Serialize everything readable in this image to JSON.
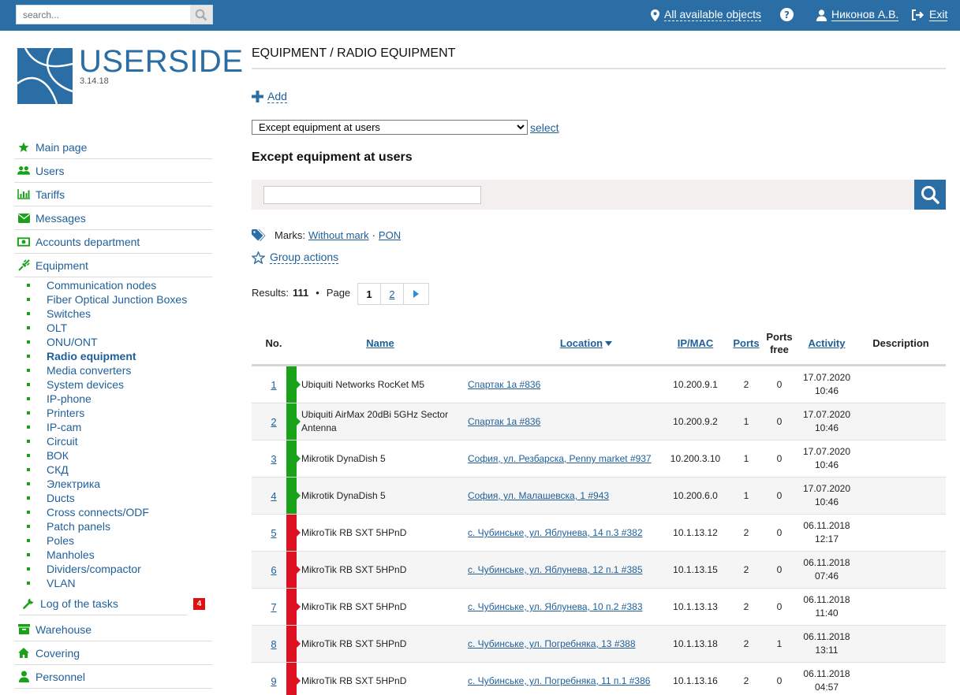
{
  "topbar": {
    "search_placeholder": "search...",
    "objects_label": "All available objects",
    "user_label": "Никонов А.В.",
    "exit_label": "Exit"
  },
  "logo": {
    "title": "USERSIDE",
    "version": "3.14.18"
  },
  "sidebar": {
    "items": [
      {
        "label": "Main page",
        "icon": "star-icon"
      },
      {
        "label": "Users",
        "icon": "users-icon"
      },
      {
        "label": "Tariffs",
        "icon": "bar-chart-icon"
      },
      {
        "label": "Messages",
        "icon": "envelope-icon"
      },
      {
        "label": "Accounts department",
        "icon": "money-icon"
      },
      {
        "label": "Equipment",
        "icon": "plug-icon"
      }
    ],
    "equipment_sub": [
      "Communication nodes",
      "Fiber Optical Junction Boxes",
      "Switches",
      "OLT",
      "ONU/ONT",
      "Radio equipment",
      "Media converters",
      "System devices",
      "IP-phone",
      "Printers",
      "IP-cam",
      "Circuit",
      "ВОК",
      "СКД",
      "Электрика",
      "Ducts",
      "Cross connects/ODF",
      "Patch panels",
      "Poles",
      "Manholes",
      "Dividers/compactor",
      "VLAN"
    ],
    "tasks_label": "Log of the tasks",
    "tasks_badge": "4",
    "bottom_items": [
      {
        "label": "Warehouse",
        "icon": "archive-icon"
      },
      {
        "label": "Covering",
        "icon": "home-icon"
      },
      {
        "label": "Personnel",
        "icon": "personnel-icon"
      }
    ]
  },
  "main": {
    "title": "EQUIPMENT / RADIO EQUIPMENT",
    "add_label": "Add",
    "filter_select_value": "Except equipment at users",
    "select_link": "select",
    "section_title": "Except equipment at users",
    "marks_label": "Marks:",
    "mark_without": "Without mark",
    "mark_sep": "·",
    "mark_pon": "PON",
    "group_actions": "Group actions",
    "results_label": "Results:",
    "results_count": "111",
    "page_label": "Page",
    "pages": [
      "1",
      "2"
    ]
  },
  "table": {
    "headers": {
      "no": "No.",
      "name": "Name",
      "location": "Location",
      "ipmac": "IP/MAC",
      "ports": "Ports",
      "ports_free": "Ports free",
      "activity": "Activity",
      "description": "Description"
    },
    "rows": [
      {
        "no": "1",
        "status": "#1aa11a",
        "name": "Ubiquiti Networks RocKet M5",
        "location": "Спартак 1а #836",
        "ip": "10.200.9.1",
        "ports": "2",
        "free": "0",
        "date": "17.07.2020",
        "time": "10:46"
      },
      {
        "no": "2",
        "status": "#1aa11a",
        "name": "Ubiquiti AirMax 20dBi 5GHz Sector Antenna",
        "location": "Спартак 1а #836",
        "ip": "10.200.9.2",
        "ports": "1",
        "free": "0",
        "date": "17.07.2020",
        "time": "10:46"
      },
      {
        "no": "3",
        "status": "#1aa11a",
        "name": "Mikrotik DynaDish 5",
        "location": "София, ул. Резбарска, Penny market #937",
        "ip": "10.200.3.10",
        "ports": "1",
        "free": "0",
        "date": "17.07.2020",
        "time": "10:46"
      },
      {
        "no": "4",
        "status": "#1aa11a",
        "name": "Mikrotik DynaDish 5",
        "location": "София, ул. Малашевска, 1 #943",
        "ip": "10.200.6.0",
        "ports": "1",
        "free": "0",
        "date": "17.07.2020",
        "time": "10:46"
      },
      {
        "no": "5",
        "status": "#dd1122",
        "name": "MikroTik RB SXT 5HPnD",
        "location": "с. Чубинське, ул. Яблунева, 14 п.3 #382",
        "ip": "10.1.13.12",
        "ports": "2",
        "free": "0",
        "date": "06.11.2018",
        "time": "12:17"
      },
      {
        "no": "6",
        "status": "#dd1122",
        "name": "MikroTik RB SXT 5HPnD",
        "location": "с. Чубинське, ул. Яблунева, 12 п.1 #385",
        "ip": "10.1.13.15",
        "ports": "2",
        "free": "0",
        "date": "06.11.2018",
        "time": "07:46"
      },
      {
        "no": "7",
        "status": "#dd1122",
        "name": "MikroTik RB SXT 5HPnD",
        "location": "с. Чубинське, ул. Яблунева, 10 п.2 #383",
        "ip": "10.1.13.13",
        "ports": "2",
        "free": "0",
        "date": "06.11.2018",
        "time": "11:40"
      },
      {
        "no": "8",
        "status": "#dd1122",
        "name": "MikroTik RB SXT 5HPnD",
        "location": "с. Чубинське, ул. Погребняка, 13 #388",
        "ip": "10.1.13.18",
        "ports": "2",
        "free": "1",
        "date": "06.11.2018",
        "time": "13:11"
      },
      {
        "no": "9",
        "status": "#dd1122",
        "name": "MikroTik RB SXT 5HPnD",
        "location": "с. Чубинське, ул. Погребняка, 11 п.1 #386",
        "ip": "10.1.13.16",
        "ports": "2",
        "free": "0",
        "date": "06.11.2018",
        "time": "04:57"
      }
    ]
  }
}
